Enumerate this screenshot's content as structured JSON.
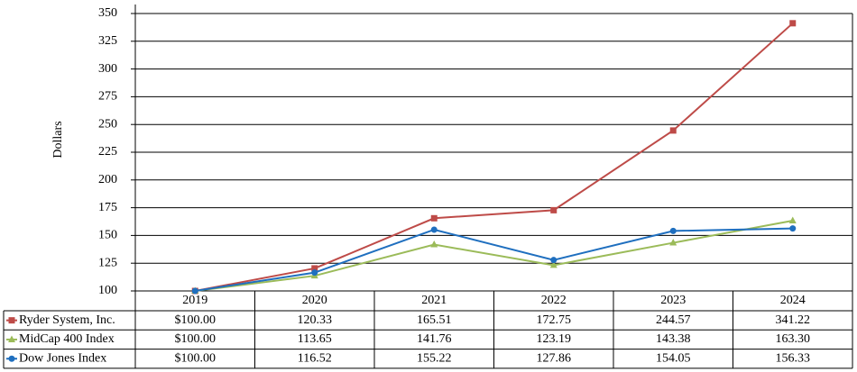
{
  "chart_data": {
    "type": "line",
    "y_label": "Dollars",
    "categories": [
      "2019",
      "2020",
      "2021",
      "2022",
      "2023",
      "2024"
    ],
    "series": [
      {
        "name": "Ryder System, Inc.",
        "color": "#be4b48",
        "marker": "square",
        "values": [
          100,
          120.33,
          165.51,
          172.75,
          244.57,
          341.22
        ],
        "value_labels": [
          "$100.00",
          "120.33",
          "165.51",
          "172.75",
          "244.57",
          "341.22"
        ]
      },
      {
        "name": "MidCap 400 Index",
        "color": "#9bbb59",
        "marker": "triangle",
        "values": [
          100,
          113.65,
          141.76,
          123.19,
          143.38,
          163.3
        ],
        "value_labels": [
          "$100.00",
          "113.65",
          "141.76",
          "123.19",
          "143.38",
          "163.30"
        ]
      },
      {
        "name": "Dow Jones Index",
        "color": "#1f6fbf",
        "marker": "circle",
        "values": [
          100,
          116.52,
          155.22,
          127.86,
          154.05,
          156.33
        ],
        "value_labels": [
          "$100.00",
          "116.52",
          "155.22",
          "127.86",
          "154.05",
          "156.33"
        ]
      }
    ],
    "ylim": [
      100,
      350
    ],
    "yticks": [
      100,
      125,
      150,
      175,
      200,
      225,
      250,
      275,
      300,
      325,
      350
    ],
    "grid": true
  }
}
